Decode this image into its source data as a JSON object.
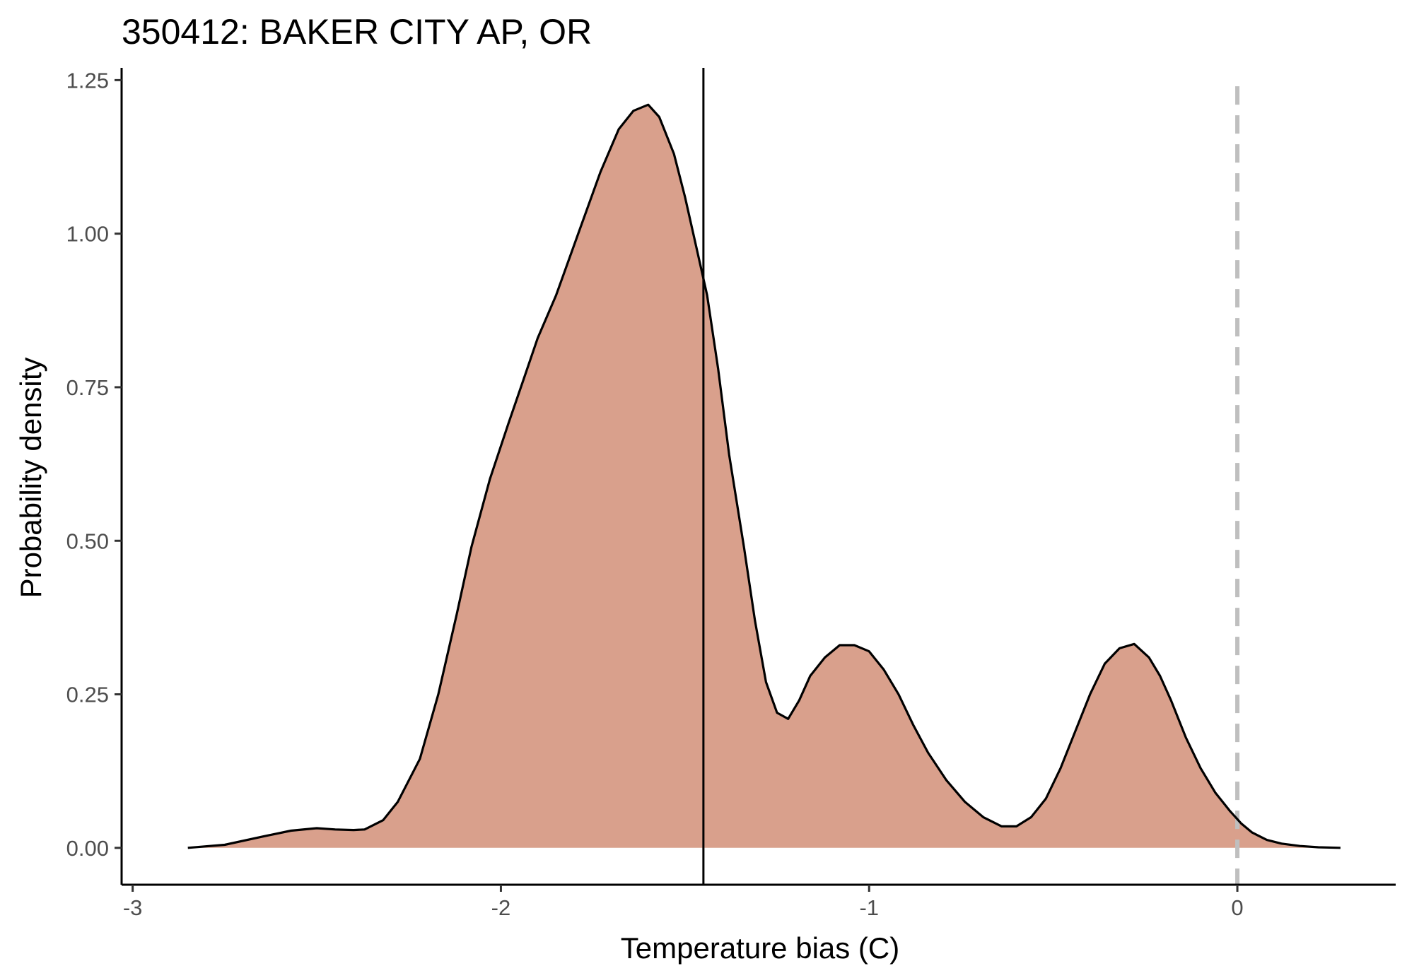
{
  "chart_data": {
    "type": "area",
    "title": "350412: BAKER CITY AP, OR",
    "xlabel": "Temperature bias (C)",
    "ylabel": "Probability density",
    "xlim": [
      -3.03,
      0.43
    ],
    "ylim": [
      -0.06,
      1.27
    ],
    "x_ticks": [
      -3,
      -2,
      -1,
      0
    ],
    "x_tick_labels": [
      "-3",
      "-2",
      "-1",
      "0"
    ],
    "y_ticks": [
      0,
      0.25,
      0.5,
      0.75,
      1.0,
      1.25
    ],
    "y_tick_labels": [
      "0.00",
      "0.25",
      "0.50",
      "0.75",
      "1.00",
      "1.25"
    ],
    "grid": false,
    "legend": "none",
    "fill_color": "#d9a08c",
    "line_color": "#000000",
    "mean_line": {
      "x": -1.45,
      "color": "#000000",
      "style": "solid"
    },
    "reference_line": {
      "x": 0,
      "color": "#bfbfbf",
      "style": "dashed"
    },
    "series": [
      {
        "x": [
          -2.85,
          -2.75,
          -2.65,
          -2.57,
          -2.5,
          -2.45,
          -2.4,
          -2.37,
          -2.32,
          -2.28,
          -2.22,
          -2.17,
          -2.12,
          -2.08,
          -2.03,
          -1.98,
          -1.94,
          -1.9,
          -1.85,
          -1.79,
          -1.73,
          -1.68,
          -1.64,
          -1.6,
          -1.57,
          -1.53,
          -1.5,
          -1.47,
          -1.44,
          -1.41,
          -1.38,
          -1.34,
          -1.31,
          -1.28,
          -1.25,
          -1.22,
          -1.19,
          -1.16,
          -1.12,
          -1.08,
          -1.04,
          -1.0,
          -0.96,
          -0.92,
          -0.88,
          -0.84,
          -0.79,
          -0.74,
          -0.69,
          -0.64,
          -0.6,
          -0.56,
          -0.52,
          -0.48,
          -0.44,
          -0.4,
          -0.36,
          -0.32,
          -0.28,
          -0.24,
          -0.21,
          -0.18,
          -0.14,
          -0.1,
          -0.06,
          -0.02,
          0.01,
          0.04,
          0.08,
          0.12,
          0.17,
          0.22,
          0.28
        ],
        "y": [
          0.0,
          0.005,
          0.018,
          0.028,
          0.032,
          0.03,
          0.029,
          0.03,
          0.045,
          0.075,
          0.145,
          0.25,
          0.38,
          0.49,
          0.6,
          0.69,
          0.76,
          0.83,
          0.9,
          1.0,
          1.1,
          1.17,
          1.2,
          1.21,
          1.19,
          1.13,
          1.06,
          0.98,
          0.9,
          0.78,
          0.64,
          0.49,
          0.37,
          0.27,
          0.22,
          0.21,
          0.24,
          0.28,
          0.31,
          0.33,
          0.33,
          0.32,
          0.29,
          0.25,
          0.2,
          0.155,
          0.11,
          0.075,
          0.05,
          0.035,
          0.035,
          0.05,
          0.08,
          0.13,
          0.19,
          0.25,
          0.3,
          0.325,
          0.332,
          0.31,
          0.28,
          0.24,
          0.18,
          0.13,
          0.09,
          0.06,
          0.04,
          0.025,
          0.013,
          0.007,
          0.003,
          0.001,
          0.0
        ]
      }
    ]
  }
}
